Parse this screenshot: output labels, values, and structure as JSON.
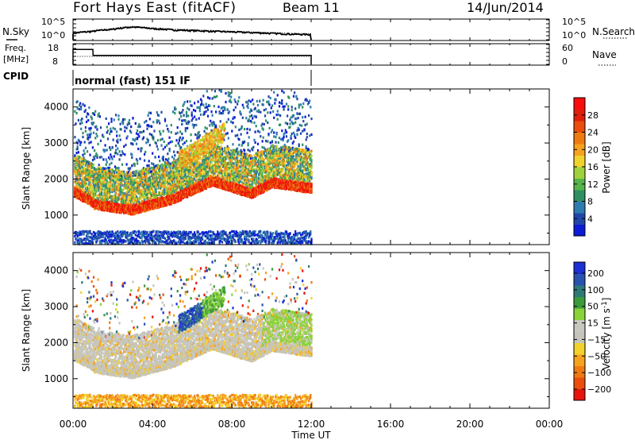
{
  "header": {
    "station": "Fort Hays East (fitACF)",
    "beam": "Beam 11",
    "date": "14/Jun/2014"
  },
  "colors": {
    "power_scale": [
      "#0b1bd6",
      "#2047a8",
      "#2e7bb0",
      "#2f8f63",
      "#56b44a",
      "#9fd23a",
      "#f2d22c",
      "#f6a21e",
      "#f07a12",
      "#ea4d0c",
      "#e01f0a",
      "#f80c0c"
    ],
    "velocity_scale": [
      "#1d2fd2",
      "#2852b0",
      "#2e7a78",
      "#3a9a3c",
      "#8ad23a",
      "#c8c8c0",
      "#c4c4bc",
      "#f2d22c",
      "#f6a21e",
      "#f07a12",
      "#ea4d0c",
      "#e8140c"
    ]
  },
  "chart_data": [
    {
      "type": "line",
      "name": "noise",
      "left_label": "N.Sky",
      "right_label": "N.Search",
      "left_ticks": [
        "10^5",
        "10^0"
      ],
      "right_ticks": [
        "10^5",
        "10^0"
      ],
      "x_hours": [
        0,
        1,
        2,
        3,
        4,
        5,
        6,
        7,
        8,
        9,
        10,
        11,
        12
      ],
      "sky_values": [
        40,
        120,
        400,
        1500,
        600,
        300,
        200,
        130,
        90,
        60,
        40,
        25,
        20
      ]
    },
    {
      "type": "line",
      "name": "frequency",
      "left_label": "Freq.",
      "left_unit": "[MHz]",
      "right_label": "Nave",
      "left_ticks": [
        18,
        8
      ],
      "right_ticks": [
        60,
        0
      ],
      "ylim_freq": [
        8,
        18
      ],
      "x_hours": [
        0,
        1,
        1.01,
        12
      ],
      "freq_values": [
        15.5,
        15.5,
        12.5,
        12.5
      ]
    },
    {
      "type": "table",
      "name": "cpid",
      "label": "CPID",
      "text": "normal (fast) 151 IF"
    },
    {
      "type": "heatmap",
      "name": "power",
      "ylabel": "Slant Range [km]",
      "yticks": [
        1000,
        2000,
        3000,
        4000
      ],
      "ylim": [
        180,
        4500
      ],
      "colorbar_label": "Power [dB]",
      "colorbar_ticks": [
        4,
        8,
        12,
        16,
        20,
        24,
        28
      ],
      "colorbar_range": [
        0,
        32
      ]
    },
    {
      "type": "heatmap",
      "name": "velocity",
      "ylabel": "Slant Range [km]",
      "yticks": [
        1000,
        2000,
        3000,
        4000
      ],
      "ylim": [
        180,
        4500
      ],
      "colorbar_label": "Velocity [m s^-1]",
      "colorbar_ticks": [
        200,
        100,
        50,
        15,
        -15,
        -50,
        -100,
        -200
      ],
      "colorbar_range": [
        -250,
        250
      ]
    }
  ],
  "xaxis": {
    "label": "Time UT",
    "tick_labels": [
      "00:00",
      "04:00",
      "08:00",
      "12:00",
      "16:00",
      "20:00",
      "00:00"
    ],
    "xlim_hours": [
      0,
      24
    ]
  }
}
